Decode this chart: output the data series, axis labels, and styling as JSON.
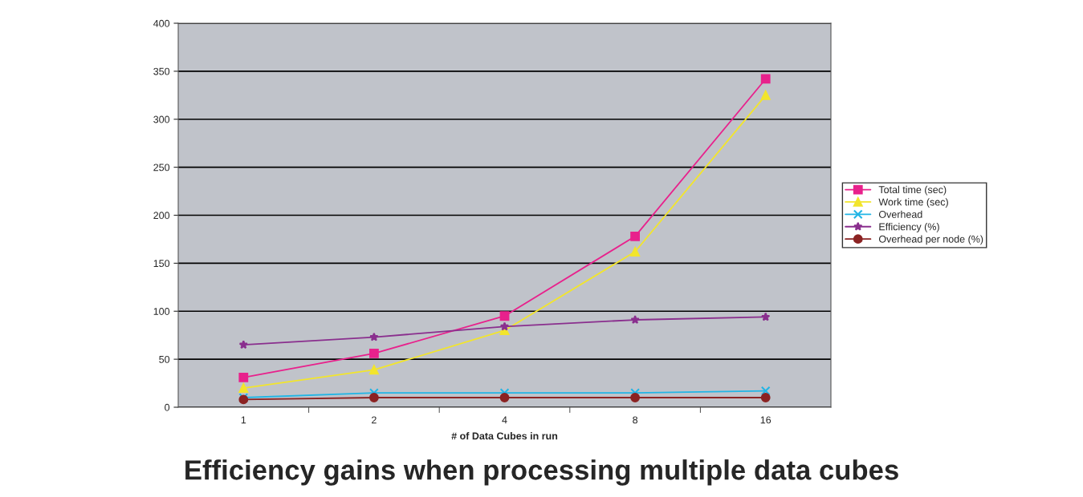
{
  "chart_data": {
    "type": "line",
    "title": "Efficiency gains when processing multiple data cubes",
    "xlabel": "# of Data Cubes in run",
    "categories": [
      "1",
      "2",
      "4",
      "8",
      "16"
    ],
    "series": [
      {
        "name": "Total time (sec)",
        "color": "#e8218c",
        "marker": "square",
        "values": [
          31,
          56,
          95,
          178,
          342
        ]
      },
      {
        "name": "Work time (sec)",
        "color": "#f2e52c",
        "marker": "triangle",
        "values": [
          20,
          39,
          80,
          162,
          325
        ]
      },
      {
        "name": "Overhead",
        "color": "#22b5e5",
        "marker": "cross",
        "values": [
          10,
          15,
          15,
          15,
          17
        ]
      },
      {
        "name": "Efficiency (%)",
        "color": "#8a2f8e",
        "marker": "star",
        "values": [
          65,
          73,
          84,
          91,
          94
        ]
      },
      {
        "name": "Overhead per node (%)",
        "color": "#8b2323",
        "marker": "circle",
        "values": [
          8,
          10,
          10,
          10,
          10
        ]
      }
    ],
    "ylim": [
      0,
      400
    ],
    "yticks": [
      0,
      50,
      100,
      150,
      200,
      250,
      300,
      350,
      400
    ],
    "grid": "y",
    "legend": "right",
    "line_style": "solid"
  }
}
